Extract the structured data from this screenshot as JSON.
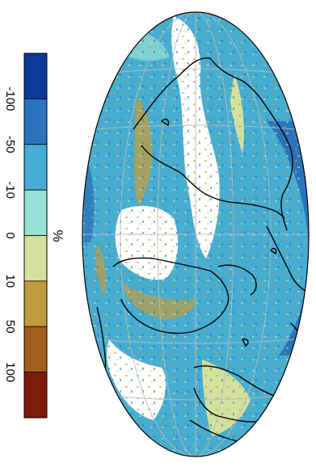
{
  "colorbar": {
    "unit": "%",
    "tick_labels": [
      "-100",
      "-50",
      "-10",
      "0",
      "10",
      "50",
      "100"
    ],
    "bins": [
      {
        "color": "#0c3a9a"
      },
      {
        "color": "#2a74bd"
      },
      {
        "color": "#45aed2"
      },
      {
        "color": "#97e0d6"
      },
      {
        "color": "#d4e09e"
      },
      {
        "color": "#c19c3e"
      },
      {
        "color": "#a35e1e"
      },
      {
        "color": "#7f1c08"
      }
    ]
  },
  "map": {
    "projection": "elliptical equal-area (rotated 90°)",
    "ocean_colors": [
      "#45aed2",
      "#2a74bd",
      "#97e0d6"
    ],
    "land_colors": [
      "#c19c3e",
      "#d4e09e",
      "#ffffff"
    ],
    "coastline_color": "#000000",
    "graticule_color": "#bbbbbb"
  }
}
